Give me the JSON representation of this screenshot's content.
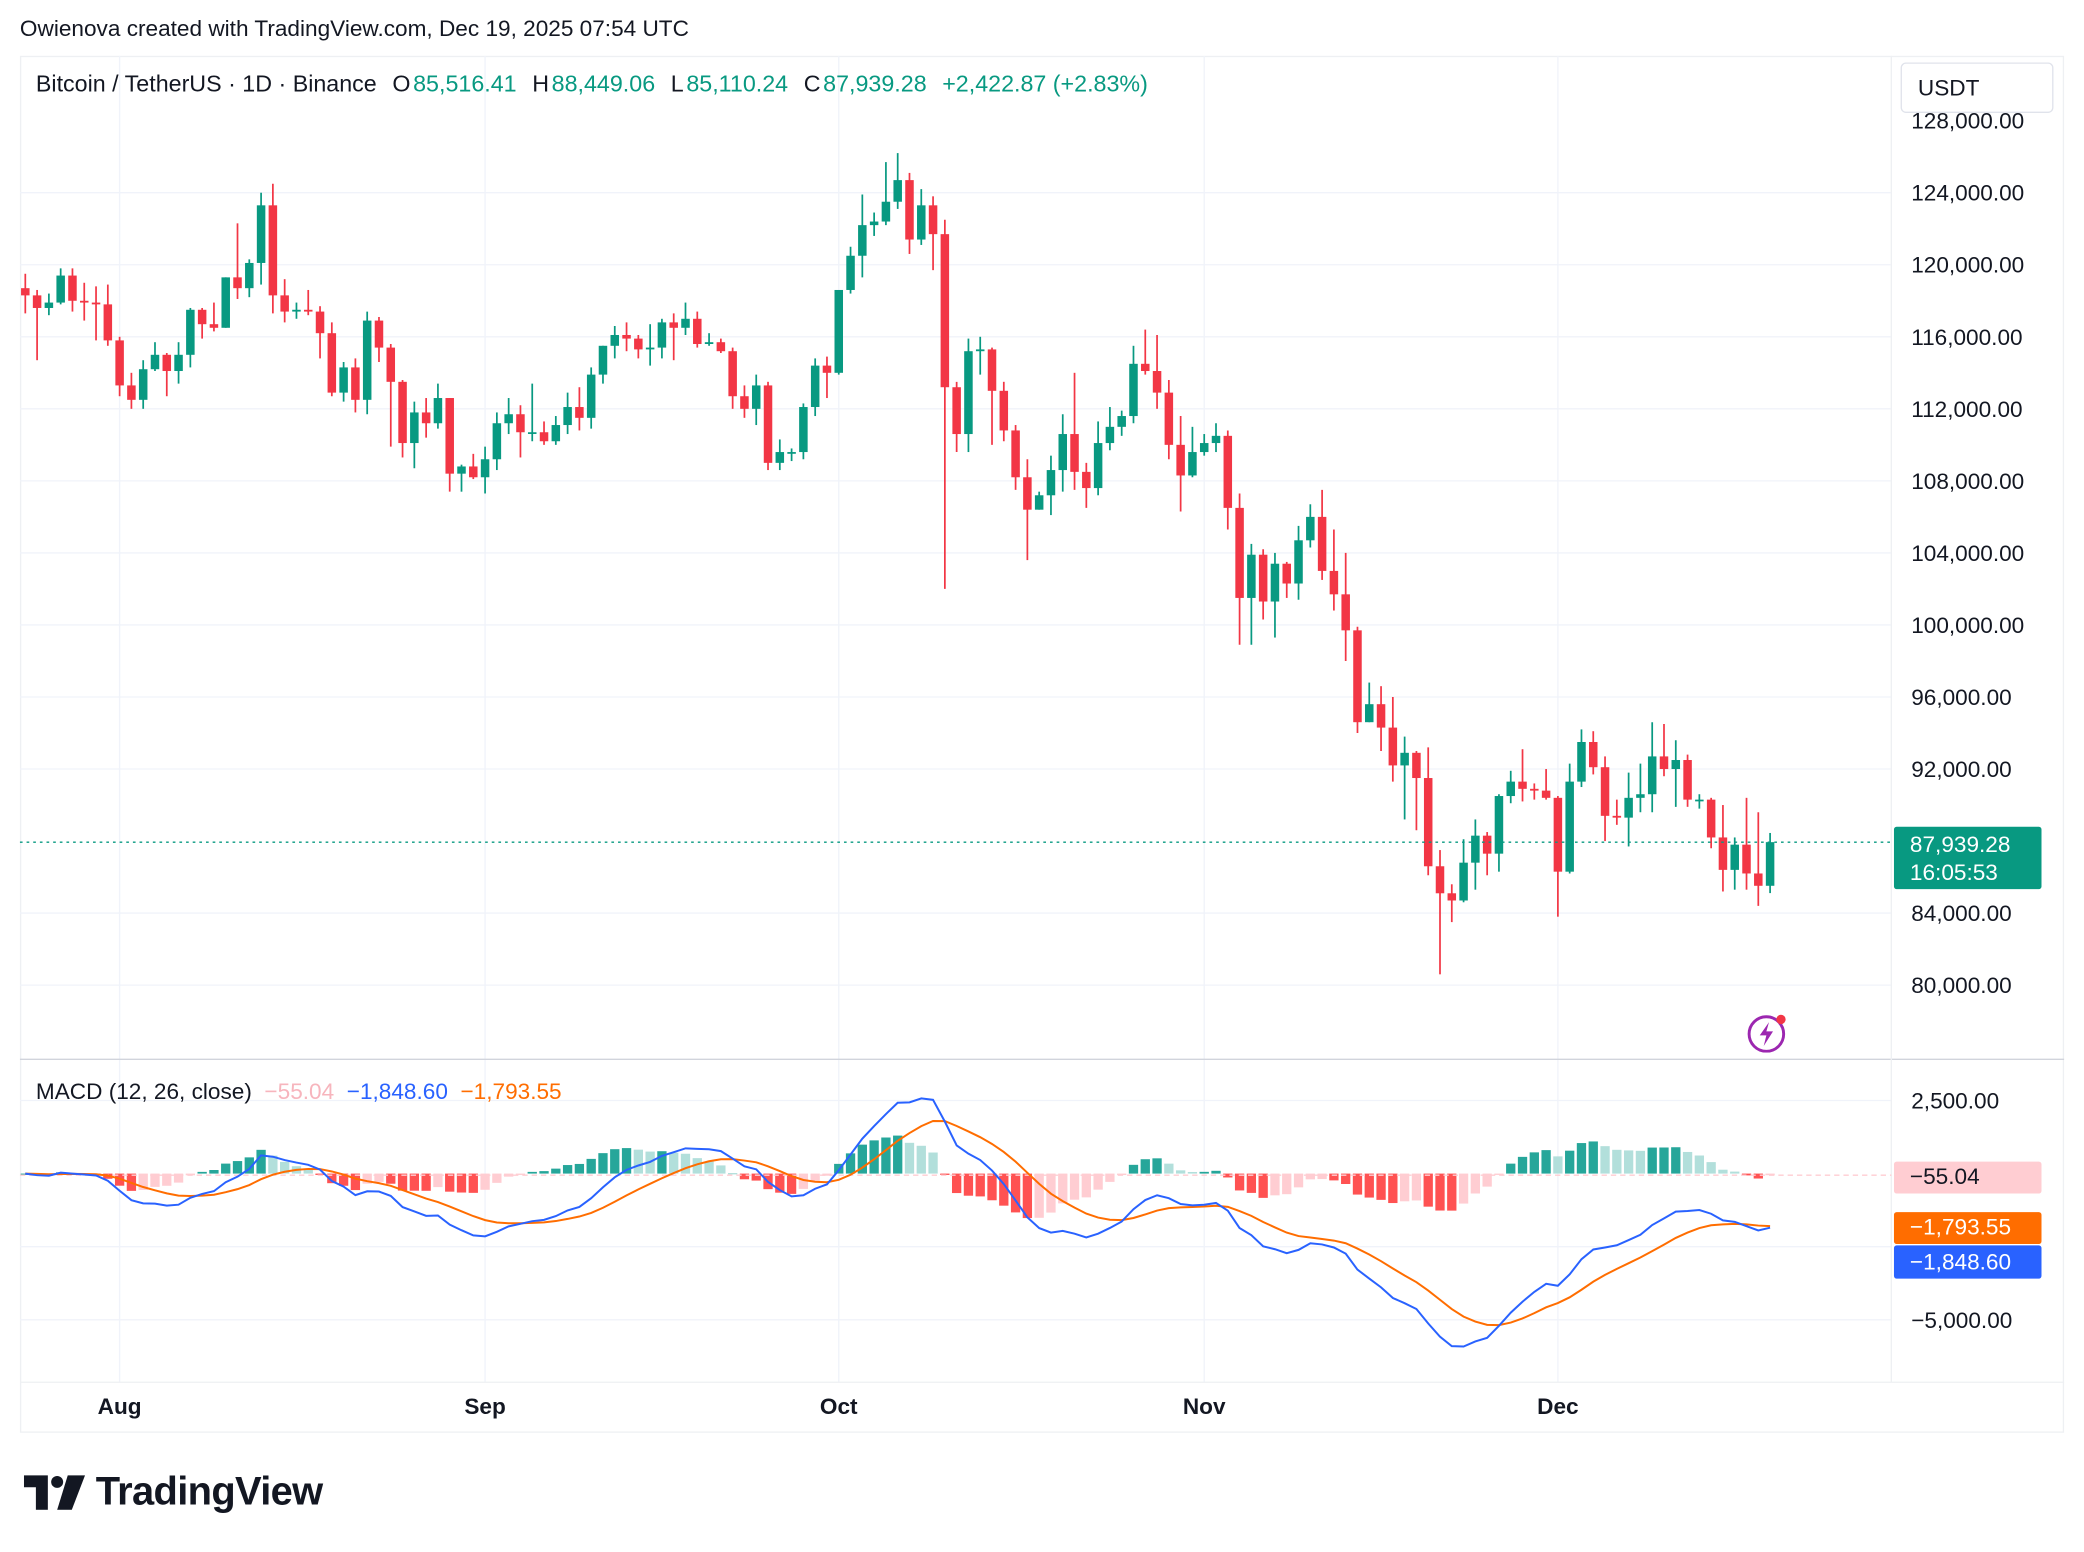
{
  "attribution": "Owienova created with TradingView.com, Dec 19, 2025 07:54 UTC",
  "legend": {
    "symbol": "Bitcoin / TetherUS · 1D · Binance",
    "open_label": "O",
    "open": "85,516.41",
    "high_label": "H",
    "high": "88,449.06",
    "low_label": "L",
    "low": "85,110.24",
    "close_label": "C",
    "close": "87,939.28",
    "change": "+2,422.87 (+2.83%)"
  },
  "currency": "USDT",
  "last_price": {
    "price": "87,939.28",
    "countdown": "16:05:53",
    "value": 87939.28
  },
  "macd_legend": {
    "title": "MACD (12, 26, close)",
    "histogram": "−55.04",
    "macd": "−1,848.60",
    "signal": "−1,793.55"
  },
  "macd_tags": {
    "histogram": "−55.04",
    "signal": "−1,793.55",
    "macd": "−1,848.60"
  },
  "logo_text": "TradingView",
  "colors": {
    "up": "#089981",
    "down": "#f23645",
    "macd": "#2962ff",
    "signal": "#ff6d00",
    "hist_up_strong": "#26a69a",
    "hist_up_weak": "#b2dfdb",
    "hist_down_strong": "#ff5252",
    "hist_down_weak": "#ffcdd2",
    "accent_icon": "#9c27b0"
  },
  "chart_data": [
    {
      "type": "candlestick",
      "title": "Bitcoin / TetherUS · 1D · Binance",
      "y_ticks": [
        "128,000.00",
        "124,000.00",
        "120,000.00",
        "116,000.00",
        "112,000.00",
        "108,000.00",
        "104,000.00",
        "100,000.00",
        "96,000.00",
        "92,000.00",
        "84,000.00",
        "80,000.00"
      ],
      "y_tick_values": [
        128000,
        124000,
        120000,
        116000,
        112000,
        108000,
        104000,
        100000,
        96000,
        92000,
        84000,
        80000
      ],
      "x_ticks": [
        "Aug",
        "Sep",
        "Oct",
        "Nov",
        "Dec"
      ],
      "x_tick_dates": [
        "2025-08-01",
        "2025-09-01",
        "2025-10-01",
        "2025-11-01",
        "2025-12-01"
      ],
      "ylim": [
        76500,
        128500
      ],
      "grid": true,
      "candles_columns": [
        "date",
        "open",
        "high",
        "low",
        "close"
      ],
      "candles": [
        [
          "2025-07-24",
          118700,
          119500,
          117300,
          118300
        ],
        [
          "2025-07-25",
          118300,
          118600,
          114700,
          117600
        ],
        [
          "2025-07-26",
          117600,
          118400,
          117200,
          117900
        ],
        [
          "2025-07-27",
          117900,
          119800,
          117800,
          119400
        ],
        [
          "2025-07-28",
          119400,
          119800,
          117400,
          118000
        ],
        [
          "2025-07-29",
          118000,
          119000,
          116900,
          117900
        ],
        [
          "2025-07-30",
          117900,
          118800,
          115800,
          117800
        ],
        [
          "2025-07-31",
          117800,
          118900,
          115500,
          115800
        ],
        [
          "2025-08-01",
          115800,
          116000,
          112700,
          113300
        ],
        [
          "2025-08-02",
          113300,
          114000,
          112000,
          112500
        ],
        [
          "2025-08-03",
          112500,
          114700,
          112000,
          114200
        ],
        [
          "2025-08-04",
          114200,
          115700,
          114100,
          115000
        ],
        [
          "2025-08-05",
          115000,
          115100,
          112700,
          114100
        ],
        [
          "2025-08-06",
          114100,
          115700,
          113400,
          115000
        ],
        [
          "2025-08-07",
          115000,
          117600,
          114300,
          117500
        ],
        [
          "2025-08-08",
          117500,
          117600,
          115900,
          116700
        ],
        [
          "2025-08-09",
          116700,
          117900,
          116300,
          116500
        ],
        [
          "2025-08-10",
          116500,
          119300,
          116500,
          119300
        ],
        [
          "2025-08-11",
          119300,
          122300,
          118100,
          118700
        ],
        [
          "2025-08-12",
          118700,
          120300,
          118200,
          120100
        ],
        [
          "2025-08-13",
          120100,
          124000,
          118900,
          123300
        ],
        [
          "2025-08-14",
          123300,
          124500,
          117300,
          118300
        ],
        [
          "2025-08-15",
          118300,
          119200,
          116800,
          117400
        ],
        [
          "2025-08-16",
          117400,
          117900,
          117000,
          117500
        ],
        [
          "2025-08-17",
          117500,
          118600,
          117200,
          117400
        ],
        [
          "2025-08-18",
          117400,
          117700,
          114800,
          116200
        ],
        [
          "2025-08-19",
          116200,
          116800,
          112700,
          112900
        ],
        [
          "2025-08-20",
          112900,
          114600,
          112400,
          114300
        ],
        [
          "2025-08-21",
          114300,
          114800,
          111800,
          112500
        ],
        [
          "2025-08-22",
          112500,
          117400,
          111700,
          116900
        ],
        [
          "2025-08-23",
          116900,
          117100,
          114600,
          115400
        ],
        [
          "2025-08-24",
          115400,
          115600,
          109900,
          113500
        ],
        [
          "2025-08-25",
          113500,
          113600,
          109300,
          110100
        ],
        [
          "2025-08-26",
          110100,
          112400,
          108700,
          111800
        ],
        [
          "2025-08-27",
          111800,
          112600,
          110400,
          111200
        ],
        [
          "2025-08-28",
          111200,
          113400,
          110900,
          112600
        ],
        [
          "2025-08-29",
          112600,
          112600,
          107400,
          108400
        ],
        [
          "2025-08-30",
          108400,
          108900,
          107400,
          108800
        ],
        [
          "2025-08-31",
          108800,
          109500,
          108100,
          108200
        ],
        [
          "2025-09-01",
          108200,
          109900,
          107300,
          109200
        ],
        [
          "2025-09-02",
          109200,
          111800,
          108600,
          111200
        ],
        [
          "2025-09-03",
          111200,
          112600,
          110600,
          111700
        ],
        [
          "2025-09-04",
          111700,
          112200,
          109300,
          110700
        ],
        [
          "2025-09-05",
          110700,
          113400,
          110200,
          110700
        ],
        [
          "2025-09-06",
          110700,
          111300,
          110000,
          110200
        ],
        [
          "2025-09-07",
          110200,
          111600,
          110000,
          111100
        ],
        [
          "2025-09-08",
          111100,
          112900,
          110600,
          112100
        ],
        [
          "2025-09-09",
          112100,
          113200,
          110800,
          111500
        ],
        [
          "2025-09-10",
          111500,
          114300,
          110900,
          113900
        ],
        [
          "2025-09-11",
          113900,
          115500,
          113400,
          115500
        ],
        [
          "2025-09-12",
          115500,
          116600,
          114800,
          116100
        ],
        [
          "2025-09-13",
          116100,
          116800,
          115200,
          115900
        ],
        [
          "2025-09-14",
          115900,
          116100,
          114800,
          115300
        ],
        [
          "2025-09-15",
          115300,
          116700,
          114400,
          115400
        ],
        [
          "2025-09-16",
          115400,
          117000,
          114800,
          116800
        ],
        [
          "2025-09-17",
          116800,
          117300,
          114700,
          116500
        ],
        [
          "2025-09-18",
          116500,
          117900,
          116100,
          117000
        ],
        [
          "2025-09-19",
          117000,
          117400,
          115400,
          115600
        ],
        [
          "2025-09-20",
          115600,
          116200,
          115500,
          115700
        ],
        [
          "2025-09-21",
          115700,
          115900,
          115100,
          115200
        ],
        [
          "2025-09-22",
          115200,
          115400,
          112000,
          112700
        ],
        [
          "2025-09-23",
          112700,
          113300,
          111500,
          112000
        ],
        [
          "2025-09-24",
          112000,
          113900,
          111100,
          113300
        ],
        [
          "2025-09-25",
          113300,
          113500,
          108600,
          109000
        ],
        [
          "2025-09-26",
          109000,
          110300,
          108600,
          109600
        ],
        [
          "2025-09-27",
          109600,
          109800,
          109100,
          109600
        ],
        [
          "2025-09-28",
          109600,
          112300,
          109200,
          112100
        ],
        [
          "2025-09-29",
          112100,
          114800,
          111600,
          114400
        ],
        [
          "2025-09-30",
          114400,
          114900,
          112600,
          114000
        ],
        [
          "2025-10-01",
          114000,
          118600,
          113900,
          118600
        ],
        [
          "2025-10-02",
          118600,
          121000,
          118400,
          120500
        ],
        [
          "2025-10-03",
          120500,
          123900,
          119300,
          122200
        ],
        [
          "2025-10-04",
          122200,
          122900,
          121600,
          122400
        ],
        [
          "2025-10-05",
          122400,
          125700,
          122200,
          123500
        ],
        [
          "2025-10-06",
          123500,
          126200,
          123100,
          124700
        ],
        [
          "2025-10-07",
          124700,
          125100,
          120600,
          121400
        ],
        [
          "2025-10-08",
          121400,
          124200,
          121100,
          123300
        ],
        [
          "2025-10-09",
          123300,
          123800,
          119700,
          121700
        ],
        [
          "2025-10-10",
          121700,
          122500,
          102000,
          113200
        ],
        [
          "2025-10-11",
          113200,
          113500,
          109600,
          110600
        ],
        [
          "2025-10-12",
          110600,
          115900,
          109600,
          115200
        ],
        [
          "2025-10-13",
          115200,
          116000,
          113900,
          115300
        ],
        [
          "2025-10-14",
          115300,
          115400,
          110000,
          113000
        ],
        [
          "2025-10-15",
          113000,
          113500,
          110200,
          110800
        ],
        [
          "2025-10-16",
          110800,
          111100,
          107500,
          108200
        ],
        [
          "2025-10-17",
          108200,
          109200,
          103600,
          106400
        ],
        [
          "2025-10-18",
          106400,
          107400,
          106400,
          107200
        ],
        [
          "2025-10-19",
          107200,
          109400,
          106100,
          108600
        ],
        [
          "2025-10-20",
          108600,
          111700,
          107400,
          110600
        ],
        [
          "2025-10-21",
          110600,
          114000,
          107500,
          108500
        ],
        [
          "2025-10-22",
          108500,
          109000,
          106500,
          107600
        ],
        [
          "2025-10-23",
          107600,
          111300,
          107200,
          110100
        ],
        [
          "2025-10-24",
          110100,
          112100,
          109700,
          111000
        ],
        [
          "2025-10-25",
          111000,
          111900,
          110500,
          111600
        ],
        [
          "2025-10-26",
          111600,
          115500,
          111200,
          114500
        ],
        [
          "2025-10-27",
          114500,
          116400,
          113900,
          114100
        ],
        [
          "2025-10-28",
          114100,
          116100,
          112000,
          112900
        ],
        [
          "2025-10-29",
          112900,
          113600,
          109200,
          110000
        ],
        [
          "2025-10-30",
          110000,
          111600,
          106300,
          108300
        ],
        [
          "2025-10-31",
          108300,
          111000,
          108200,
          109600
        ],
        [
          "2025-11-01",
          109600,
          110600,
          109400,
          110100
        ],
        [
          "2025-11-02",
          110100,
          111200,
          109600,
          110500
        ],
        [
          "2025-11-03",
          110500,
          110800,
          105300,
          106500
        ],
        [
          "2025-11-04",
          106500,
          107300,
          98900,
          101500
        ],
        [
          "2025-11-05",
          101500,
          104500,
          98900,
          103900
        ],
        [
          "2025-11-06",
          103900,
          104200,
          100300,
          101300
        ],
        [
          "2025-11-07",
          101300,
          104000,
          99300,
          103400
        ],
        [
          "2025-11-08",
          103400,
          103500,
          101500,
          102300
        ],
        [
          "2025-11-09",
          102300,
          105500,
          101400,
          104700
        ],
        [
          "2025-11-10",
          104700,
          106700,
          104300,
          106000
        ],
        [
          "2025-11-11",
          106000,
          107500,
          102500,
          103000
        ],
        [
          "2025-11-12",
          103000,
          105300,
          100800,
          101700
        ],
        [
          "2025-11-13",
          101700,
          104000,
          98000,
          99700
        ],
        [
          "2025-11-14",
          99700,
          99900,
          94000,
          94600
        ],
        [
          "2025-11-15",
          94600,
          96800,
          94600,
          95600
        ],
        [
          "2025-11-16",
          95600,
          96600,
          93000,
          94300
        ],
        [
          "2025-11-17",
          94300,
          96000,
          91300,
          92200
        ],
        [
          "2025-11-18",
          92200,
          93800,
          89200,
          92900
        ],
        [
          "2025-11-19",
          92900,
          93000,
          88600,
          91500
        ],
        [
          "2025-11-20",
          91500,
          93200,
          86100,
          86600
        ],
        [
          "2025-11-21",
          86600,
          87500,
          80600,
          85100
        ],
        [
          "2025-11-22",
          85100,
          85600,
          83500,
          84700
        ],
        [
          "2025-11-23",
          84700,
          88100,
          84600,
          86800
        ],
        [
          "2025-11-24",
          86800,
          89200,
          85300,
          88300
        ],
        [
          "2025-11-25",
          88300,
          88500,
          86100,
          87300
        ],
        [
          "2025-11-26",
          87300,
          90600,
          86300,
          90500
        ],
        [
          "2025-11-27",
          90500,
          91900,
          90100,
          91300
        ],
        [
          "2025-11-28",
          91300,
          93100,
          90200,
          90900
        ],
        [
          "2025-11-29",
          90900,
          91200,
          90300,
          90800
        ],
        [
          "2025-11-30",
          90800,
          92000,
          90300,
          90400
        ],
        [
          "2025-12-01",
          90400,
          90500,
          83800,
          86300
        ],
        [
          "2025-12-02",
          86300,
          92300,
          86200,
          91300
        ],
        [
          "2025-12-03",
          91300,
          94200,
          91000,
          93500
        ],
        [
          "2025-12-04",
          93500,
          94100,
          91700,
          92100
        ],
        [
          "2025-12-05",
          92100,
          92700,
          88000,
          89400
        ],
        [
          "2025-12-06",
          89400,
          90300,
          88900,
          89300
        ],
        [
          "2025-12-07",
          89300,
          91800,
          87700,
          90400
        ],
        [
          "2025-12-08",
          90400,
          92300,
          89600,
          90600
        ],
        [
          "2025-12-09",
          90600,
          94600,
          89600,
          92700
        ],
        [
          "2025-12-10",
          92700,
          94500,
          91600,
          92000
        ],
        [
          "2025-12-11",
          92000,
          93600,
          89900,
          92500
        ],
        [
          "2025-12-12",
          92500,
          92800,
          89900,
          90300
        ],
        [
          "2025-12-13",
          90300,
          90600,
          89800,
          90300
        ],
        [
          "2025-12-14",
          90300,
          90400,
          87600,
          88200
        ],
        [
          "2025-12-15",
          88200,
          90000,
          85200,
          86400
        ],
        [
          "2025-12-16",
          86400,
          88200,
          85300,
          87800
        ],
        [
          "2025-12-17",
          87800,
          90400,
          85300,
          86200
        ],
        [
          "2025-12-18",
          86200,
          89600,
          84400,
          85516
        ],
        [
          "2025-12-19",
          85516.41,
          88449.06,
          85110.24,
          87939.28
        ]
      ]
    },
    {
      "type": "line",
      "title": "MACD (12, 26, close)",
      "params": {
        "fast": 12,
        "slow": 26,
        "source": "close"
      },
      "series": [
        {
          "name": "Histogram",
          "last": -55.04
        },
        {
          "name": "MACD",
          "last": -1848.6
        },
        {
          "name": "Signal",
          "last": -1793.55
        }
      ],
      "y_ticks": [
        "2,500.00",
        "−5,000.00"
      ],
      "y_tick_values": [
        2500,
        -5000
      ],
      "ylim": [
        -6000,
        3000
      ]
    }
  ]
}
